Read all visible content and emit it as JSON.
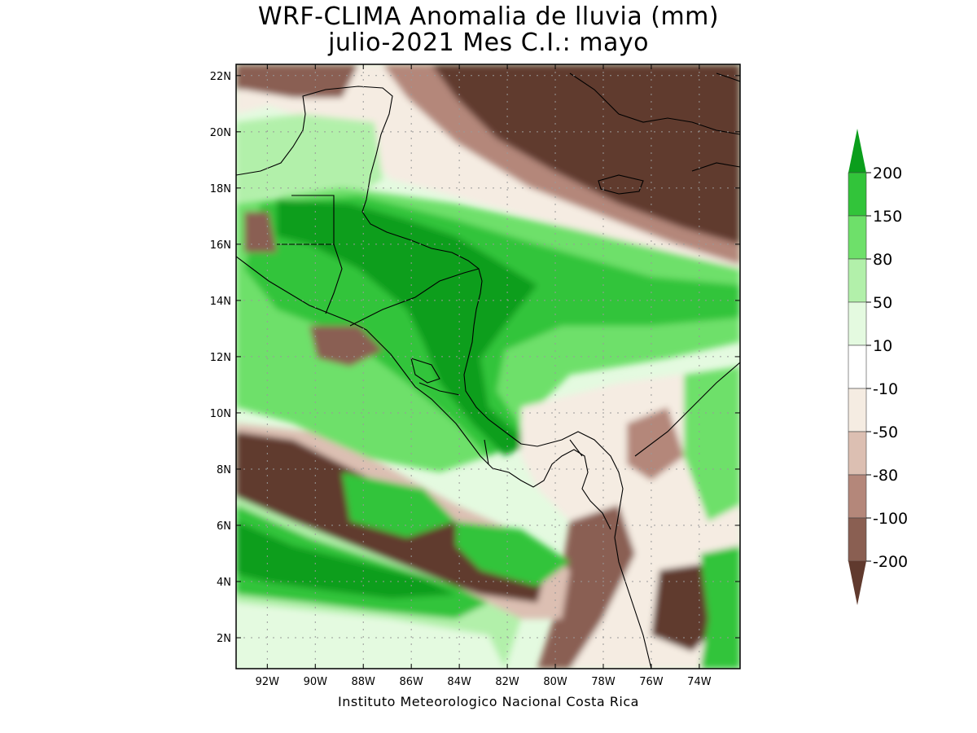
{
  "title": {
    "line1": "WRF-CLIMA Anomalia de lluvia (mm)",
    "line2": "julio-2021 Mes C.I.: mayo"
  },
  "credit": "Instituto Meteorologico Nacional Costa Rica",
  "axes": {
    "lat_labels": [
      "22N",
      "20N",
      "18N",
      "16N",
      "14N",
      "12N",
      "10N",
      "8N",
      "6N",
      "4N",
      "2N"
    ],
    "lat_values": [
      22,
      20,
      18,
      16,
      14,
      12,
      10,
      8,
      6,
      4,
      2
    ],
    "lon_labels": [
      "92W",
      "90W",
      "88W",
      "86W",
      "84W",
      "82W",
      "80W",
      "78W",
      "76W",
      "74W"
    ],
    "lon_values": [
      -92,
      -90,
      -88,
      -86,
      -84,
      -82,
      -80,
      -78,
      -76,
      -74
    ],
    "lat_range": [
      0.9,
      22.4
    ],
    "lon_range": [
      -93.3,
      -72.3
    ],
    "grid": "dotted"
  },
  "legend": {
    "labels": [
      "200",
      "150",
      "80",
      "50",
      "10",
      "-10",
      "-50",
      "-80",
      "-100",
      "-200"
    ],
    "colors": [
      "#0b9e1c",
      "#32c43a",
      "#6ee06a",
      "#b2f0aa",
      "#e4fae0",
      "#ffffff",
      "#f5ece2",
      "#dcbfb2",
      "#b4877a",
      "#8a5f52",
      "#603a2e"
    ]
  },
  "regions": {
    "bands": [
      {
        "name": "Caribbean Sea dry anomaly",
        "category": "-200"
      },
      {
        "name": "Central America wet anomaly",
        "category": "200"
      },
      {
        "name": "Pacific ITCZ dry band",
        "category": "-200"
      },
      {
        "name": "Equatorial Pacific wet band",
        "category": "200"
      }
    ]
  }
}
